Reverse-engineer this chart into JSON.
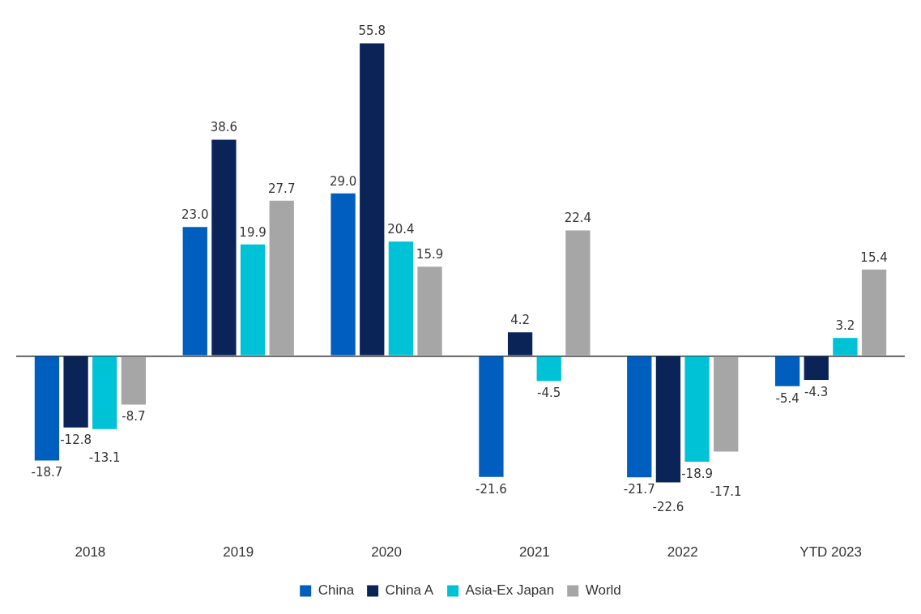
{
  "chart_data": {
    "type": "bar",
    "categories": [
      "2018",
      "2019",
      "2020",
      "2021",
      "2022",
      "YTD 2023"
    ],
    "series": [
      {
        "name": "China",
        "color": "#005ebf",
        "values": [
          -18.7,
          23.0,
          29.0,
          -21.6,
          -21.7,
          -5.4
        ],
        "value_labels": [
          "-18.7",
          "23.0",
          "29.0",
          "-21.6",
          "-21.7",
          "-5.4"
        ]
      },
      {
        "name": "China A",
        "color": "#0a2458",
        "values": [
          -12.8,
          38.6,
          55.8,
          4.2,
          -22.6,
          -4.3
        ],
        "value_labels": [
          "-12.8",
          "38.6",
          "55.8",
          "4.2",
          "-22.6",
          "-4.3"
        ]
      },
      {
        "name": "Asia-Ex Japan",
        "color": "#00c2d6",
        "values": [
          -13.1,
          19.9,
          20.4,
          -4.5,
          -18.9,
          3.2
        ],
        "value_labels": [
          "-13.1",
          "19.9",
          "20.4",
          "-4.5",
          "-18.9",
          "3.2"
        ]
      },
      {
        "name": "World",
        "color": "#a6a6a6",
        "values": [
          -8.7,
          27.7,
          15.9,
          22.4,
          -17.1,
          15.4
        ],
        "value_labels": [
          "-8.7",
          "27.7",
          "15.9",
          "22.4",
          "-17.1",
          "15.4"
        ]
      }
    ],
    "grid": false,
    "legend": "bottom",
    "tick_labels": "x"
  }
}
